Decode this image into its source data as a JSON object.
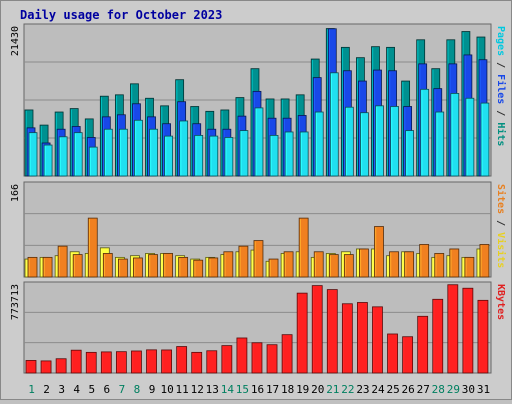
{
  "chart_data": {
    "type": "bar",
    "title": "Daily usage for October 2023",
    "categories": [
      "1",
      "2",
      "3",
      "4",
      "5",
      "6",
      "7",
      "8",
      "9",
      "10",
      "11",
      "12",
      "13",
      "14",
      "15",
      "16",
      "17",
      "18",
      "19",
      "20",
      "21",
      "22",
      "23",
      "24",
      "25",
      "26",
      "27",
      "28",
      "29",
      "30",
      "31"
    ],
    "weekend_days": [
      "1",
      "7",
      "8",
      "14",
      "15",
      "21",
      "22",
      "28",
      "29"
    ],
    "panels": [
      {
        "id": "top",
        "ymax_label": "21430",
        "ymax": 21430,
        "right_label_parts": [
          {
            "text": "Pages",
            "color": "#00c8e0"
          },
          {
            "text": " / ",
            "color": "#333333"
          },
          {
            "text": "Files",
            "color": "#1848e8"
          },
          {
            "text": " / ",
            "color": "#333333"
          },
          {
            "text": "Hits",
            "color": "#009080"
          }
        ],
        "series": [
          {
            "key": "hits",
            "color": "#009090",
            "values": [
              9600,
              7400,
              9300,
              9800,
              8300,
              11600,
              11800,
              13400,
              11300,
              10200,
              14000,
              10100,
              9400,
              9600,
              11400,
              15600,
              11200,
              11200,
              11800,
              17000,
              21430,
              18700,
              17200,
              18800,
              18700,
              13800,
              19800,
              15600,
              19800,
              21000,
              20200
            ]
          },
          {
            "key": "files",
            "color": "#1848e8",
            "values": [
              7000,
              4800,
              6800,
              7200,
              5600,
              8600,
              8900,
              10500,
              8600,
              7600,
              10800,
              7600,
              6800,
              6800,
              8700,
              12300,
              8400,
              8400,
              8800,
              14300,
              21400,
              15300,
              13800,
              15400,
              15300,
              10100,
              16300,
              12700,
              16300,
              17600,
              16900
            ]
          },
          {
            "key": "pages",
            "color": "#20e0f0",
            "values": [
              6300,
              4500,
              5700,
              6300,
              4200,
              6800,
              6800,
              8100,
              6800,
              5800,
              8000,
              5900,
              5800,
              5600,
              6600,
              9900,
              5900,
              6400,
              6400,
              9300,
              15000,
              10000,
              9200,
              10200,
              10100,
              6600,
              12600,
              9300,
              12000,
              11300,
              10600
            ]
          }
        ]
      },
      {
        "id": "middle",
        "ymax_label": "166",
        "ymax": 166,
        "right_label_parts": [
          {
            "text": "Sites",
            "color": "#e88020"
          },
          {
            "text": " / ",
            "color": "#333333"
          },
          {
            "text": "Visits",
            "color": "#e8d020"
          }
        ],
        "series": [
          {
            "key": "visits",
            "color": "#ffff40",
            "values": [
              32,
              35,
              38,
              45,
              42,
              52,
              35,
              38,
              42,
              42,
              38,
              32,
              35,
              40,
              45,
              48,
              28,
              42,
              45,
              35,
              42,
              45,
              50,
              50,
              38,
              45,
              42,
              35,
              38,
              35,
              50
            ]
          },
          {
            "key": "sites",
            "color": "#f08020",
            "values": [
              35,
              35,
              55,
              40,
              105,
              42,
              32,
              34,
              40,
              42,
              35,
              30,
              34,
              45,
              55,
              65,
              32,
              45,
              105,
              45,
              40,
              40,
              50,
              90,
              45,
              45,
              58,
              42,
              50,
              35,
              58
            ]
          }
        ]
      },
      {
        "id": "bottom",
        "ymax_label": "773713",
        "ymax": 773713,
        "right_label_parts": [
          {
            "text": "KBytes",
            "color": "#e02020"
          }
        ],
        "series": [
          {
            "key": "kbytes",
            "color": "#ff2020",
            "values": [
              110000,
              106000,
              125000,
              200000,
              181000,
              185000,
              187000,
              193000,
              203000,
              202000,
              232000,
              181000,
              195000,
              240000,
              307000,
              265000,
              248000,
              336000,
              700000,
              766000,
              731000,
              607000,
              618000,
              580000,
              342000,
              318000,
              497000,
              646000,
              773713,
              743000,
              637000
            ]
          }
        ]
      }
    ]
  }
}
